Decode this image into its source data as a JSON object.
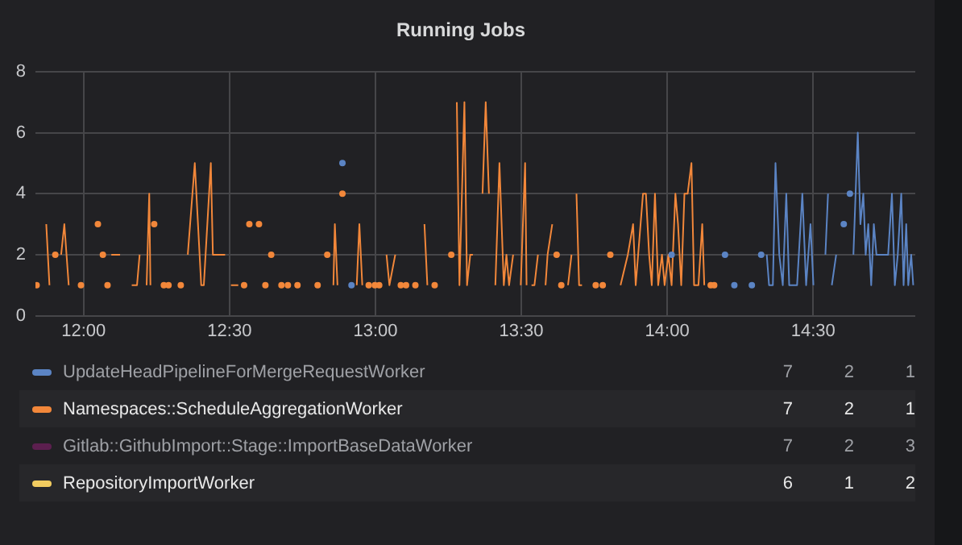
{
  "chart_data": {
    "type": "line",
    "title": "Running Jobs",
    "legend": "bottom",
    "grid": true,
    "line_style": "solid",
    "xlim": [
      11.835,
      14.85
    ],
    "xticks": [
      {
        "value": 12,
        "label": "12:00"
      },
      {
        "value": 12.5,
        "label": "12:30"
      },
      {
        "value": 13,
        "label": "13:00"
      },
      {
        "value": 13.5,
        "label": "13:30"
      },
      {
        "value": 14,
        "label": "14:00"
      },
      {
        "value": 14.5,
        "label": "14:30"
      }
    ],
    "ylim": [
      0,
      8
    ],
    "yticks": [
      0,
      2,
      4,
      6,
      8
    ],
    "series": [
      {
        "name": "UpdateHeadPipelineForMergeRequestWorker",
        "color": "#5b84c4",
        "x": [
          12.887,
          12.9,
          12.918,
          12.93,
          14.015,
          14.03,
          14.198,
          14.21,
          14.23,
          14.24,
          14.29,
          14.3,
          14.322,
          14.33,
          14.341,
          14.349,
          14.362,
          14.371,
          14.384,
          14.396,
          14.408,
          14.418,
          14.436,
          14.445,
          14.463,
          14.476,
          14.491,
          14.501,
          14.52,
          14.542,
          14.551,
          14.556,
          14.564,
          14.579,
          14.59,
          14.605,
          14.615,
          14.626,
          14.632,
          14.638,
          14.653,
          14.662,
          14.672,
          14.68,
          14.689,
          14.699,
          14.708,
          14.717,
          14.73,
          14.742,
          14.757,
          14.77,
          14.78,
          14.79,
          14.802,
          14.81,
          14.819,
          14.826,
          14.836,
          14.843
        ],
        "values": [
          5,
          null,
          1,
          null,
          2,
          null,
          2,
          null,
          1,
          null,
          1,
          null,
          2,
          null,
          2,
          1,
          1,
          5,
          2,
          1,
          4,
          1,
          1,
          1,
          4,
          1,
          3,
          1,
          null,
          2,
          4,
          null,
          1,
          2,
          null,
          3,
          null,
          4,
          null,
          2,
          6,
          3,
          4,
          2,
          3,
          1,
          3,
          2,
          2,
          2,
          2,
          4,
          1,
          2,
          4,
          1,
          3,
          1,
          2,
          1
        ]
      },
      {
        "name": "Namespaces::ScheduleAggregationWorker",
        "color": "#f2873a",
        "x": [
          11.839,
          11.86,
          11.872,
          11.883,
          11.89,
          11.903,
          11.91,
          11.923,
          11.934,
          11.949,
          11.97,
          11.991,
          12.02,
          12.049,
          12.06,
          12.066,
          12.075,
          12.082,
          12.09,
          12.095,
          12.125,
          12.14,
          12.165,
          12.183,
          12.192,
          12.2,
          12.216,
          12.225,
          12.229,
          12.235,
          12.242,
          12.26,
          12.275,
          12.283,
          12.291,
          12.31,
          12.333,
          12.345,
          12.357,
          12.381,
          12.403,
          12.412,
          12.436,
          12.443,
          12.485,
          12.5,
          12.505,
          12.53,
          12.54,
          12.55,
          12.56,
          12.568,
          12.59,
          12.601,
          12.61,
          12.623,
          12.635,
          12.643,
          12.66,
          12.678,
          12.69,
          12.7,
          12.72,
          12.733,
          12.77,
          12.802,
          12.82,
          12.835,
          12.85,
          12.856,
          12.861,
          12.87,
          12.88,
          12.887,
          12.92,
          12.936,
          12.945,
          12.955,
          12.965,
          12.977,
          12.99,
          12.998,
          13.005,
          13.013,
          13.025,
          13.038,
          13.048,
          13.068,
          13.078,
          13.087,
          13.095,
          13.105,
          13.12,
          13.137,
          13.15,
          13.168,
          13.178,
          13.19,
          13.203,
          13.23,
          13.26,
          13.27,
          13.279,
          13.288,
          13.305,
          13.314,
          13.325,
          13.334,
          13.35,
          13.367,
          13.378,
          13.389,
          13.4,
          13.411,
          13.425,
          13.44,
          13.449,
          13.458,
          13.472,
          13.485,
          13.498,
          13.513,
          13.518,
          13.525,
          13.535,
          13.545,
          13.557,
          13.57,
          13.583,
          13.59,
          13.606,
          13.614,
          13.621,
          13.63,
          13.637,
          13.65,
          13.66,
          13.672,
          13.68,
          13.689,
          13.698,
          13.708,
          13.73,
          13.755,
          13.767,
          13.779,
          13.79,
          13.805,
          13.82,
          13.84,
          13.865,
          13.883,
          13.892,
          13.917,
          13.927,
          13.938,
          13.947,
          13.958,
          13.969,
          13.982,
          13.991,
          14.004,
          14.015,
          14.028,
          14.037,
          14.048,
          14.059,
          14.07,
          14.083,
          14.092,
          14.107,
          14.12,
          14.127,
          14.14,
          14.149,
          14.155,
          14.161
        ],
        "values": [
          1,
          null,
          3,
          1,
          null,
          2,
          null,
          2,
          3,
          1,
          null,
          1,
          null,
          3,
          null,
          2,
          null,
          1,
          null,
          2,
          2,
          null,
          1,
          1,
          2,
          null,
          1,
          4,
          1,
          null,
          3,
          null,
          1,
          null,
          1,
          null,
          1,
          null,
          2,
          5,
          1,
          1,
          5,
          2,
          2,
          null,
          1,
          1,
          null,
          1,
          null,
          3,
          null,
          3,
          null,
          1,
          null,
          2,
          null,
          1,
          null,
          1,
          null,
          1,
          null,
          1,
          null,
          2,
          null,
          1,
          3,
          1,
          null,
          4,
          null,
          1,
          3,
          1,
          null,
          1,
          null,
          1,
          null,
          1,
          null,
          2,
          1,
          2,
          null,
          1,
          null,
          1,
          null,
          1,
          null,
          3,
          1,
          null,
          1,
          null,
          2,
          null,
          7,
          1,
          7,
          1,
          2,
          2,
          null,
          4,
          7,
          4,
          null,
          1,
          5,
          1,
          2,
          1,
          2,
          null,
          1,
          5,
          1,
          null,
          1,
          1,
          2,
          null,
          1,
          2,
          3,
          null,
          2,
          null,
          1,
          null,
          1,
          2,
          null,
          4,
          1,
          1,
          null,
          1,
          null,
          1,
          null,
          2,
          null,
          1,
          2,
          3,
          1,
          4,
          4,
          2,
          1,
          4,
          1,
          2,
          1,
          2,
          1,
          4,
          3,
          1,
          4,
          4,
          5,
          1,
          1,
          3,
          1,
          null,
          1,
          null,
          1
        ]
      },
      {
        "name": "Gitlab::GithubImport::Stage::ImportBaseDataWorker",
        "color": "#5c1f4f"
      },
      {
        "name": "RepositoryImportWorker",
        "color": "#f2cc60"
      }
    ],
    "annotations": [
      "7",
      "2",
      "1",
      "7",
      "2",
      "1",
      "7",
      "2",
      "3",
      "6",
      "1",
      "2"
    ]
  }
}
